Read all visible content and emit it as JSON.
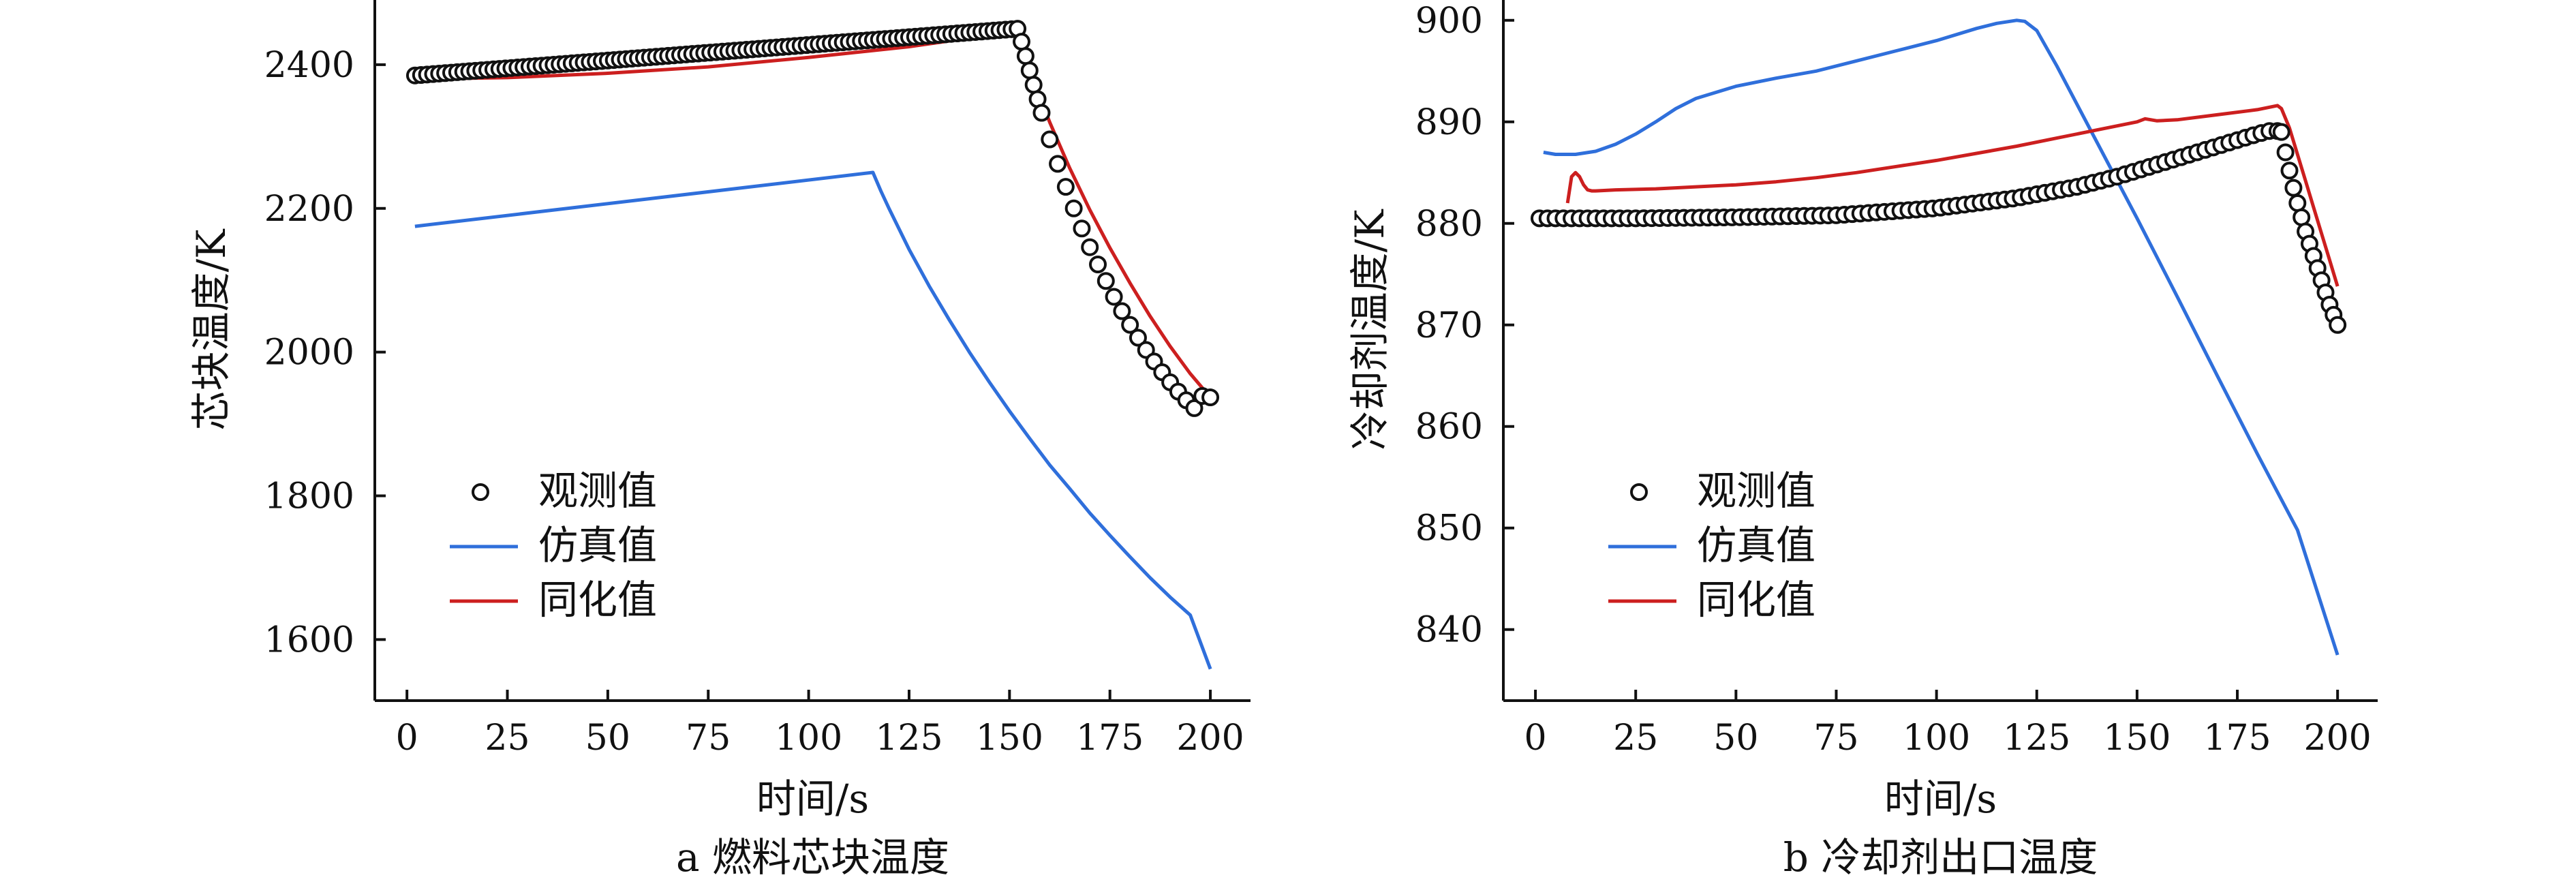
{
  "chart_data": [
    {
      "type": "line",
      "caption": "a  燃料芯块温度",
      "xlabel": "时间/s",
      "ylabel": "芯块温度/K",
      "xlim": [
        -8,
        210
      ],
      "ylim": [
        1515,
        2490
      ],
      "xticks": [
        0,
        25,
        50,
        75,
        100,
        125,
        150,
        175,
        200
      ],
      "yticks": [
        1600,
        1800,
        2000,
        2200,
        2400
      ],
      "legend": {
        "placement": "lower-left",
        "entries": [
          "观测值",
          "仿真值",
          "同化值"
        ]
      },
      "colors": {
        "observed": "#111111",
        "simulated": "#2f6fdb",
        "assimilated": "#cc1f1f"
      },
      "series": [
        {
          "name": "观测值",
          "style": "markers",
          "x": [
            2,
            152,
            153,
            154,
            155,
            156,
            157,
            158,
            160,
            162,
            164,
            166,
            168,
            170,
            172,
            174,
            176,
            178,
            180,
            182,
            184,
            186,
            188,
            190,
            192,
            194,
            196,
            198,
            200
          ],
          "y": [
            2385,
            2450,
            2432,
            2412,
            2392,
            2372,
            2352,
            2333,
            2296,
            2262,
            2230,
            2200,
            2172,
            2146,
            2122,
            2099,
            2077,
            2057,
            2038,
            2020,
            2003,
            1987,
            1972,
            1958,
            1945,
            1933,
            1922,
            1939,
            1937
          ],
          "uniform_range": {
            "from": 2,
            "to": 152,
            "step": 1.5
          }
        },
        {
          "name": "仿真值",
          "x": [
            2,
            116,
            118,
            120,
            125,
            130,
            135,
            140,
            145,
            150,
            155,
            160,
            165,
            170,
            175,
            180,
            185,
            190,
            195,
            200
          ],
          "y": [
            2175,
            2250,
            2224,
            2200,
            2143,
            2092,
            2045,
            2000,
            1958,
            1918,
            1880,
            1843,
            1810,
            1776,
            1745,
            1715,
            1686,
            1659,
            1634,
            1559
          ]
        },
        {
          "name": "同化值",
          "x": [
            2,
            25,
            50,
            75,
            100,
            125,
            140,
            150,
            152,
            155,
            160,
            165,
            170,
            175,
            180,
            185,
            190,
            195,
            200
          ],
          "y": [
            2380,
            2382,
            2388,
            2397,
            2410,
            2425,
            2437,
            2445,
            2440,
            2390,
            2320,
            2256,
            2198,
            2145,
            2096,
            2050,
            2008,
            1970,
            1937
          ]
        }
      ]
    },
    {
      "type": "line",
      "caption": "b  冷却剂出口温度",
      "xlabel": "时间/s",
      "ylabel": "冷却剂温度/K",
      "xlim": [
        -8,
        210
      ],
      "ylim": [
        833,
        902
      ],
      "xticks": [
        0,
        25,
        50,
        75,
        100,
        125,
        150,
        175,
        200
      ],
      "yticks": [
        840,
        850,
        860,
        870,
        880,
        890,
        900
      ],
      "legend": {
        "placement": "lower-left",
        "entries": [
          "观测值",
          "仿真值",
          "同化值"
        ]
      },
      "colors": {
        "observed": "#111111",
        "simulated": "#2f6fdb",
        "assimilated": "#cc1f1f"
      },
      "series": [
        {
          "name": "观测值",
          "style": "markers",
          "x": [
            1,
            25,
            50,
            75,
            100,
            120,
            135,
            145,
            155,
            165,
            175,
            180,
            184,
            186,
            187,
            188,
            189,
            190,
            191,
            192,
            193,
            194,
            195,
            196,
            197,
            198,
            199,
            200
          ],
          "y": [
            880.5,
            880.5,
            880.6,
            880.8,
            881.5,
            882.5,
            883.6,
            884.6,
            885.8,
            887.0,
            888.2,
            888.8,
            889.2,
            889.0,
            887.0,
            885.2,
            883.5,
            882.0,
            880.6,
            879.2,
            878.0,
            876.8,
            875.6,
            874.4,
            873.2,
            872.0,
            871.0,
            870.0
          ],
          "uniform_range": {
            "from": 1,
            "to": 185,
            "step": 2
          }
        },
        {
          "name": "仿真值",
          "x": [
            2,
            5,
            10,
            15,
            20,
            25,
            30,
            35,
            40,
            50,
            60,
            70,
            80,
            90,
            100,
            110,
            115,
            120,
            122,
            125,
            130,
            140,
            150,
            160,
            170,
            180,
            190,
            200
          ],
          "y": [
            887.0,
            886.8,
            886.8,
            887.1,
            887.8,
            888.8,
            890.0,
            891.3,
            892.3,
            893.5,
            894.3,
            895.0,
            896.0,
            897.0,
            898.0,
            899.2,
            899.7,
            900.0,
            899.9,
            899.0,
            895.5,
            888.0,
            880.5,
            872.8,
            865.0,
            857.3,
            849.8,
            837.5
          ]
        },
        {
          "name": "同化值",
          "x": [
            8,
            9,
            10,
            11,
            12,
            13,
            14,
            15,
            20,
            30,
            40,
            50,
            60,
            70,
            80,
            90,
            100,
            110,
            120,
            130,
            140,
            150,
            152,
            155,
            160,
            170,
            180,
            185,
            186,
            188,
            190,
            192,
            194,
            196,
            198,
            200
          ],
          "y": [
            882.0,
            884.6,
            885.0,
            884.6,
            883.8,
            883.3,
            883.2,
            883.2,
            883.3,
            883.4,
            883.6,
            883.8,
            884.1,
            884.5,
            885.0,
            885.6,
            886.2,
            886.9,
            887.6,
            888.4,
            889.2,
            890.0,
            890.3,
            890.1,
            890.2,
            890.7,
            891.2,
            891.6,
            891.3,
            889.4,
            886.8,
            884.2,
            881.6,
            879.0,
            876.4,
            873.8
          ]
        }
      ]
    }
  ]
}
